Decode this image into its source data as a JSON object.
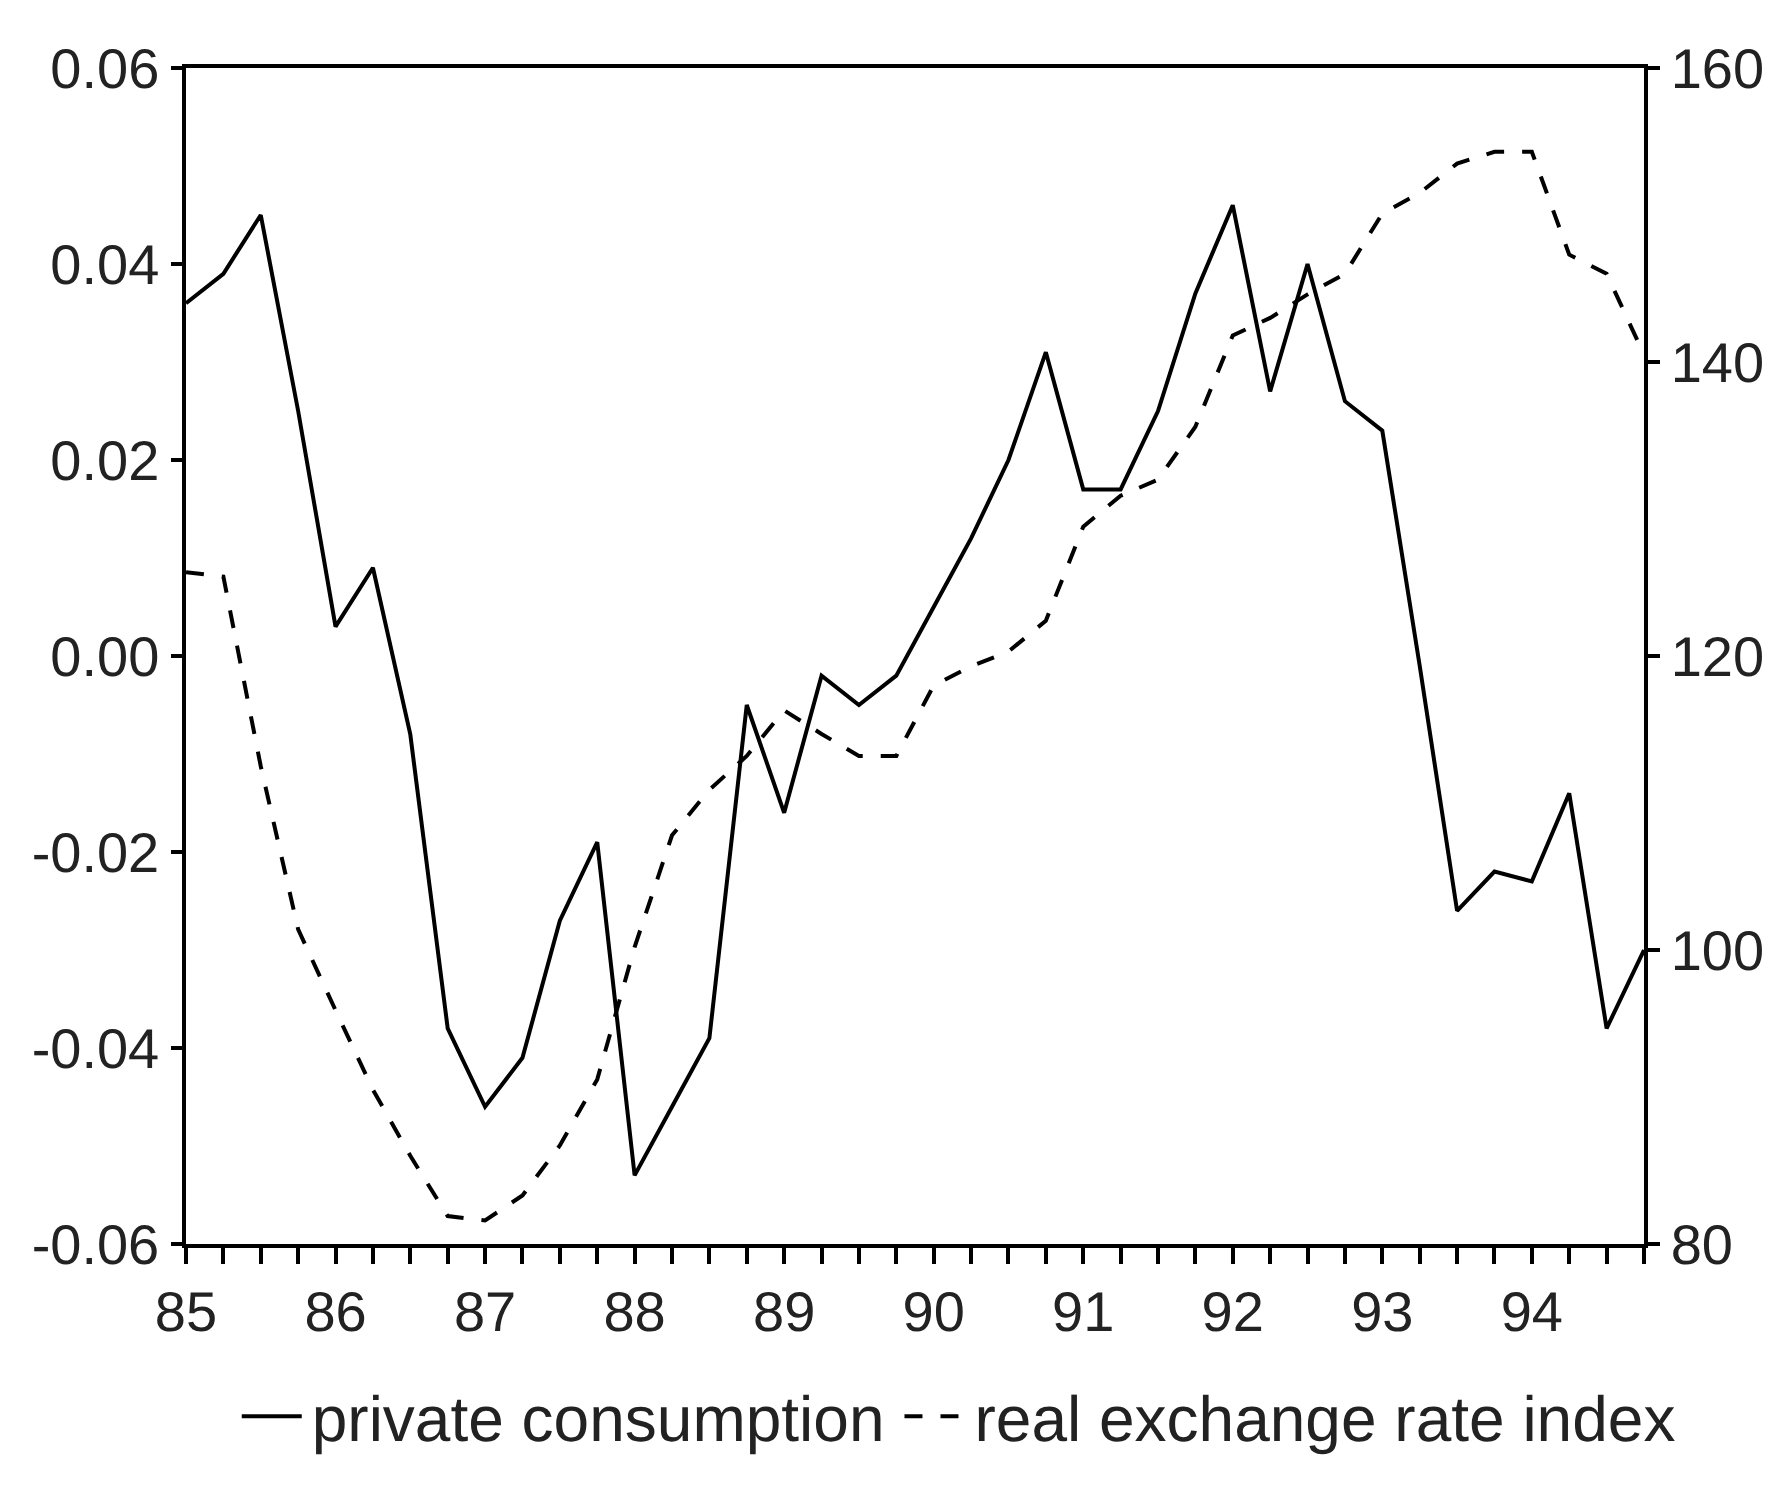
{
  "chart_data": {
    "type": "line",
    "x": [
      85,
      85.25,
      85.5,
      85.75,
      86,
      86.25,
      86.5,
      86.75,
      87,
      87.25,
      87.5,
      87.75,
      88,
      88.25,
      88.5,
      88.75,
      89,
      89.25,
      89.5,
      89.75,
      90,
      90.25,
      90.5,
      90.75,
      91,
      91.25,
      91.5,
      91.75,
      92,
      92.25,
      92.5,
      92.75,
      93,
      93.25,
      93.5,
      93.75,
      94,
      94.25,
      94.5,
      94.75
    ],
    "xlim": [
      85,
      94.75
    ],
    "xticks": [
      85,
      {
        "value": 85.25,
        "label": null
      },
      {
        "value": 85.5,
        "label": null
      },
      {
        "value": 85.75,
        "label": null
      },
      86,
      {
        "value": 86.25,
        "label": null
      },
      {
        "value": 86.5,
        "label": null
      },
      {
        "value": 86.75,
        "label": null
      },
      87,
      {
        "value": 87.25,
        "label": null
      },
      {
        "value": 87.5,
        "label": null
      },
      {
        "value": 87.75,
        "label": null
      },
      88,
      {
        "value": 88.25,
        "label": null
      },
      {
        "value": 88.5,
        "label": null
      },
      {
        "value": 88.75,
        "label": null
      },
      89,
      {
        "value": 89.25,
        "label": null
      },
      {
        "value": 89.5,
        "label": null
      },
      {
        "value": 89.75,
        "label": null
      },
      90,
      {
        "value": 90.25,
        "label": null
      },
      {
        "value": 90.5,
        "label": null
      },
      {
        "value": 90.75,
        "label": null
      },
      91,
      {
        "value": 91.25,
        "label": null
      },
      {
        "value": 91.5,
        "label": null
      },
      {
        "value": 91.75,
        "label": null
      },
      92,
      {
        "value": 92.25,
        "label": null
      },
      {
        "value": 92.5,
        "label": null
      },
      {
        "value": 92.75,
        "label": null
      },
      93,
      {
        "value": 93.25,
        "label": null
      },
      {
        "value": 93.5,
        "label": null
      },
      {
        "value": 93.75,
        "label": null
      },
      94,
      {
        "value": 94.25,
        "label": null
      },
      {
        "value": 94.5,
        "label": null
      },
      {
        "value": 94.75,
        "label": null
      }
    ],
    "ylim": [
      -0.06,
      0.06
    ],
    "yticks": [
      -0.06,
      -0.04,
      -0.02,
      {
        "value": 0,
        "label": "0.00"
      },
      0.02,
      0.04,
      0.06
    ],
    "y2lim": [
      80,
      160
    ],
    "y2ticks": [
      80,
      100,
      120,
      140,
      160
    ],
    "series": [
      {
        "name": "private consumption",
        "color": "#000000",
        "line_style": "solid",
        "values": [
          0.036,
          0.039,
          0.045,
          0.025,
          0.003,
          0.009,
          -0.008,
          -0.038,
          -0.046,
          -0.041,
          -0.027,
          -0.019,
          -0.053,
          -0.046,
          -0.039,
          -0.005,
          -0.016,
          -0.002,
          -0.005,
          -0.002,
          0.005,
          0.012,
          0.02,
          0.031,
          0.017,
          0.017,
          0.025,
          0.037,
          0.046,
          0.027,
          0.04,
          0.026,
          0.023,
          -0.001,
          -0.026,
          -0.022,
          -0.023,
          -0.014,
          -0.038,
          -0.03
        ]
      },
      {
        "name": "real exchange rate index",
        "color": "#000000",
        "line_style": "dashed",
        "axis": "y2",
        "values": [
          125.7,
          125.4,
          112.5,
          101.4,
          95.9,
          90.5,
          86.0,
          81.9,
          81.6,
          83.3,
          86.7,
          91.2,
          100.2,
          107.8,
          110.9,
          113.2,
          116.3,
          114.7,
          113.2,
          113.2,
          118.0,
          119.3,
          120.3,
          122.4,
          128.8,
          130.9,
          132.0,
          135.6,
          141.8,
          143.0,
          144.6,
          146.0,
          150.1,
          151.5,
          153.5,
          154.3,
          154.3,
          147.3,
          146.0,
          140.5
        ]
      }
    ],
    "legend": "bottom"
  }
}
